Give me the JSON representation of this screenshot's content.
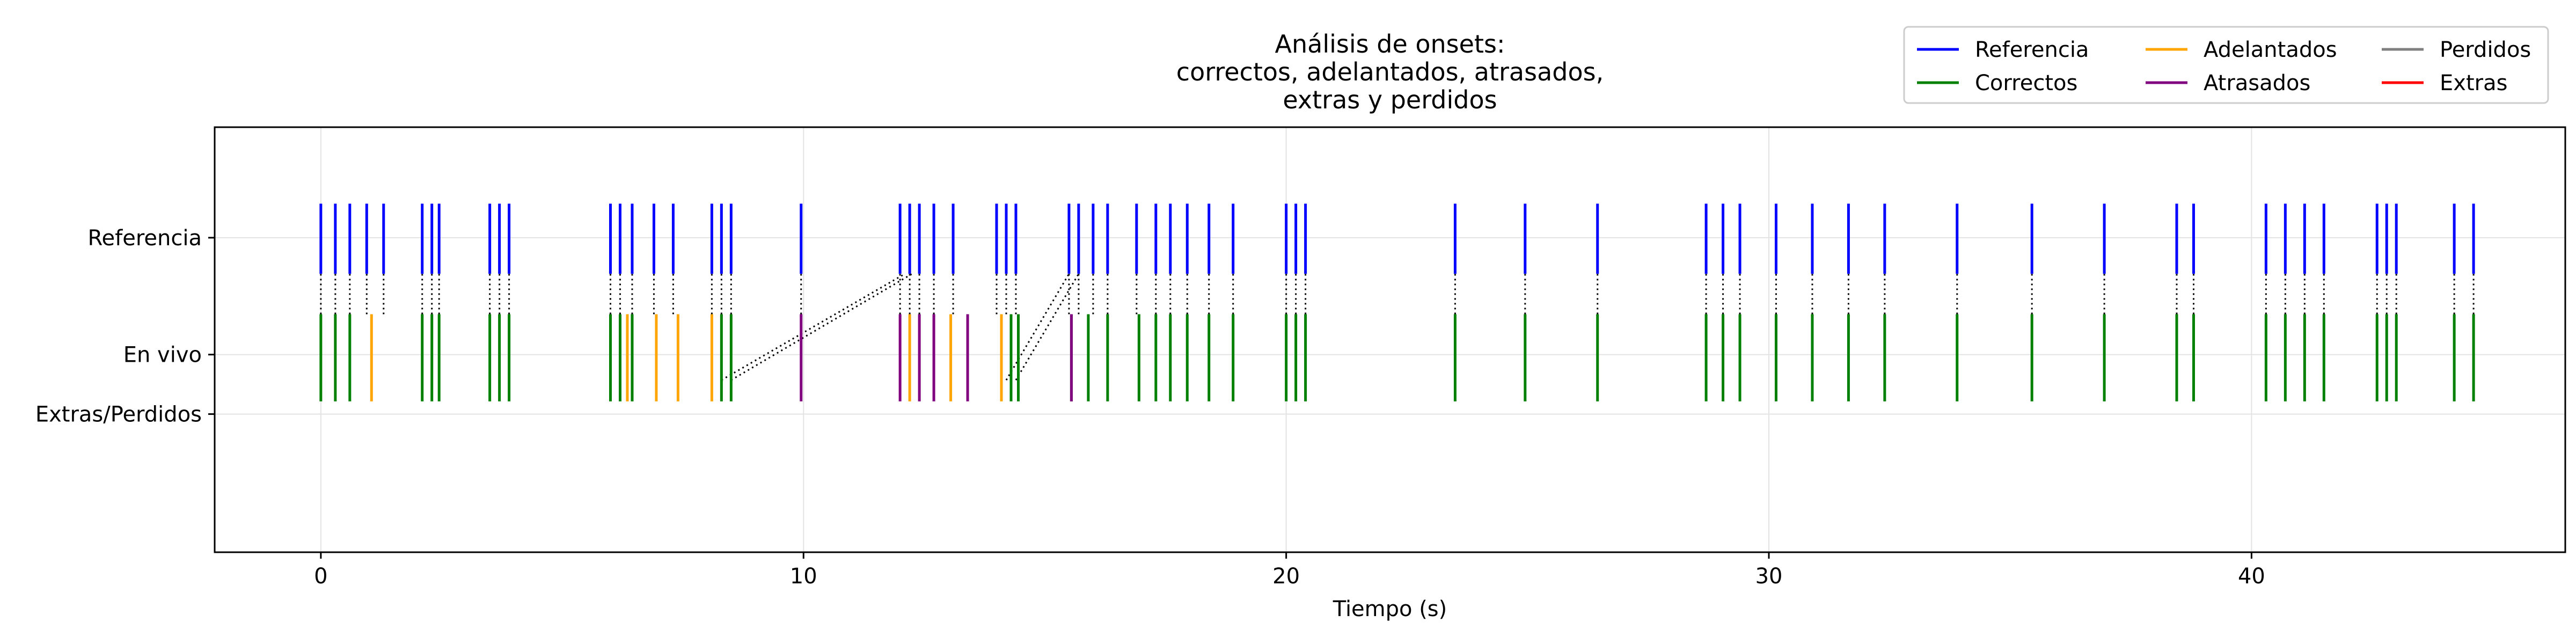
{
  "chart_data": {
    "type": "event-plot",
    "title_lines": [
      "Análisis de onsets:",
      "correctos, adelantados, atrasados,",
      "extras y perdidos"
    ],
    "xlabel": "Tiempo (s)",
    "ylabel": "",
    "xlim": [
      -2.2,
      46.5
    ],
    "ylim": [
      0,
      1
    ],
    "xticks": [
      0,
      10,
      20,
      30,
      40
    ],
    "yticks": [
      {
        "label": "Referencia",
        "value": 0.74
      },
      {
        "label": "En vivo",
        "value": 0.465
      },
      {
        "label": "Extras/Perdidos",
        "value": 0.325
      }
    ],
    "grid": true,
    "legend_position": "top-right",
    "colors": {
      "Referencia": "#0000ff",
      "Correctos": "#008000",
      "Adelantados": "#ffa500",
      "Atrasados": "#800080",
      "Perdidos": "#808080",
      "Extras": "#ff0000"
    },
    "legend": [
      "Referencia",
      "Adelantados",
      "Perdidos",
      "Correctos",
      "Atrasados",
      "Extras"
    ],
    "series": [
      {
        "name": "Referencia",
        "row": "top",
        "x": [
          0.0,
          0.3,
          0.6,
          0.95,
          1.3,
          2.1,
          2.3,
          2.45,
          3.5,
          3.7,
          3.9,
          6.0,
          6.2,
          6.45,
          6.9,
          7.3,
          8.1,
          8.3,
          8.5,
          9.95,
          12.0,
          12.2,
          12.4,
          12.7,
          13.1,
          14.0,
          14.2,
          14.4,
          15.5,
          15.7,
          16.0,
          16.3,
          16.9,
          17.3,
          17.6,
          17.95,
          18.4,
          18.9,
          20.0,
          20.2,
          20.4,
          23.5,
          24.95,
          26.45,
          28.7,
          29.05,
          29.4,
          30.15,
          30.9,
          31.65,
          32.4,
          33.9,
          35.45,
          36.95,
          38.45,
          38.8,
          40.3,
          40.7,
          41.1,
          41.5,
          42.6,
          42.8,
          43.0,
          44.2,
          44.6
        ]
      },
      {
        "name": "Correctos",
        "row": "bottom",
        "x": [
          0.0,
          0.3,
          0.6,
          2.1,
          2.3,
          2.45,
          3.5,
          3.7,
          3.9,
          6.0,
          6.2,
          6.45,
          8.3,
          8.5,
          14.3,
          14.45,
          15.55,
          15.9,
          16.3,
          16.95,
          17.3,
          17.6,
          17.95,
          18.4,
          18.9,
          20.0,
          20.2,
          20.4,
          23.5,
          24.95,
          26.45,
          28.7,
          29.05,
          29.4,
          30.15,
          30.9,
          31.65,
          32.4,
          33.9,
          35.45,
          36.95,
          38.45,
          38.8,
          40.3,
          40.7,
          41.1,
          41.5,
          42.6,
          42.8,
          43.0,
          44.2,
          44.6
        ]
      },
      {
        "name": "Adelantados",
        "row": "bottom",
        "x": [
          1.05,
          6.35,
          6.95,
          7.4,
          8.1,
          12.2,
          13.05,
          14.1
        ]
      },
      {
        "name": "Atrasados",
        "row": "bottom",
        "x": [
          9.95,
          12.0,
          12.4,
          12.7,
          13.4,
          15.55
        ]
      },
      {
        "name": "Perdidos",
        "row": "bottom",
        "x": []
      },
      {
        "name": "Extras",
        "row": "bottom",
        "x": []
      }
    ],
    "matches": [
      [
        8.5,
        12.25
      ],
      [
        8.3,
        12.1
      ],
      [
        14.2,
        15.5
      ],
      [
        14.4,
        15.7
      ]
    ]
  }
}
